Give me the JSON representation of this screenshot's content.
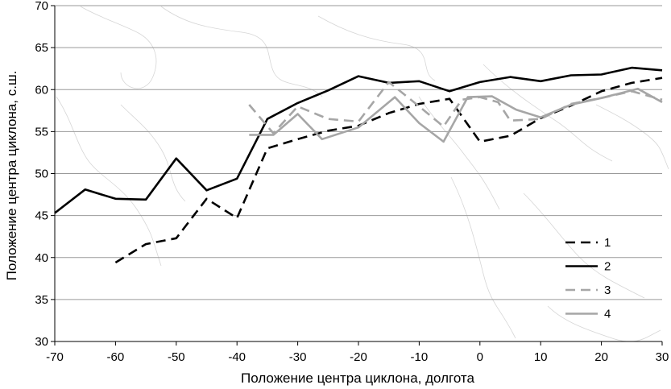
{
  "chart_data": {
    "type": "line",
    "xlabel": "Положение центра циклона, долгота",
    "ylabel": "Положение центра циклона, с.ш.",
    "xlim": [
      -70,
      30
    ],
    "ylim": [
      30,
      70
    ],
    "xticks": [
      -70,
      -60,
      -50,
      -40,
      -30,
      -20,
      -10,
      0,
      10,
      20,
      30
    ],
    "yticks": [
      30,
      35,
      40,
      45,
      50,
      55,
      60,
      65,
      70
    ],
    "grid": "horizontal",
    "legend_position": "bottom-right",
    "background": "faint coastline map",
    "series": [
      {
        "name": "1",
        "color": "#000000",
        "style": "dashed",
        "x": [
          -60,
          -55,
          -50,
          -45,
          -40,
          -35,
          -30,
          -25,
          -20,
          -15,
          -10,
          -5,
          0,
          5,
          10,
          15,
          20,
          25,
          30
        ],
        "y": [
          39.4,
          41.6,
          42.3,
          47.0,
          44.7,
          53.0,
          54.1,
          55.1,
          55.7,
          57.2,
          58.3,
          58.9,
          53.8,
          54.5,
          56.6,
          58.1,
          59.8,
          60.8,
          61.4
        ]
      },
      {
        "name": "2",
        "color": "#000000",
        "style": "solid",
        "x": [
          -70,
          -65,
          -60,
          -55,
          -50,
          -45,
          -40,
          -35,
          -30,
          -25,
          -20,
          -15,
          -10,
          -5,
          0,
          5,
          10,
          15,
          20,
          25,
          30
        ],
        "y": [
          45.3,
          48.1,
          47.0,
          46.9,
          51.8,
          48.0,
          49.4,
          56.5,
          58.4,
          59.9,
          61.6,
          60.8,
          61.0,
          59.8,
          60.9,
          61.5,
          61.0,
          61.7,
          61.8,
          62.6,
          62.3
        ]
      },
      {
        "name": "3",
        "color": "#a6a6a6",
        "style": "dashed",
        "x": [
          -38,
          -34,
          -30,
          -25,
          -20,
          -15,
          -10,
          -6,
          -3,
          0,
          3,
          5,
          10,
          15,
          20,
          25,
          30
        ],
        "y": [
          58.2,
          54.8,
          58.0,
          56.5,
          56.2,
          60.9,
          58.0,
          55.6,
          58.8,
          59.1,
          58.5,
          56.3,
          56.5,
          58.3,
          59.0,
          59.8,
          58.8
        ]
      },
      {
        "name": "4",
        "color": "#a6a6a6",
        "style": "solid",
        "x": [
          -38,
          -34,
          -30,
          -26,
          -20,
          -14,
          -10,
          -6,
          -2,
          2,
          6,
          10,
          15,
          20,
          26,
          30
        ],
        "y": [
          54.6,
          54.6,
          57.1,
          54.1,
          55.5,
          59.1,
          56.0,
          53.8,
          59.1,
          59.2,
          57.6,
          56.7,
          58.2,
          59.0,
          60.1,
          58.5
        ]
      }
    ]
  }
}
